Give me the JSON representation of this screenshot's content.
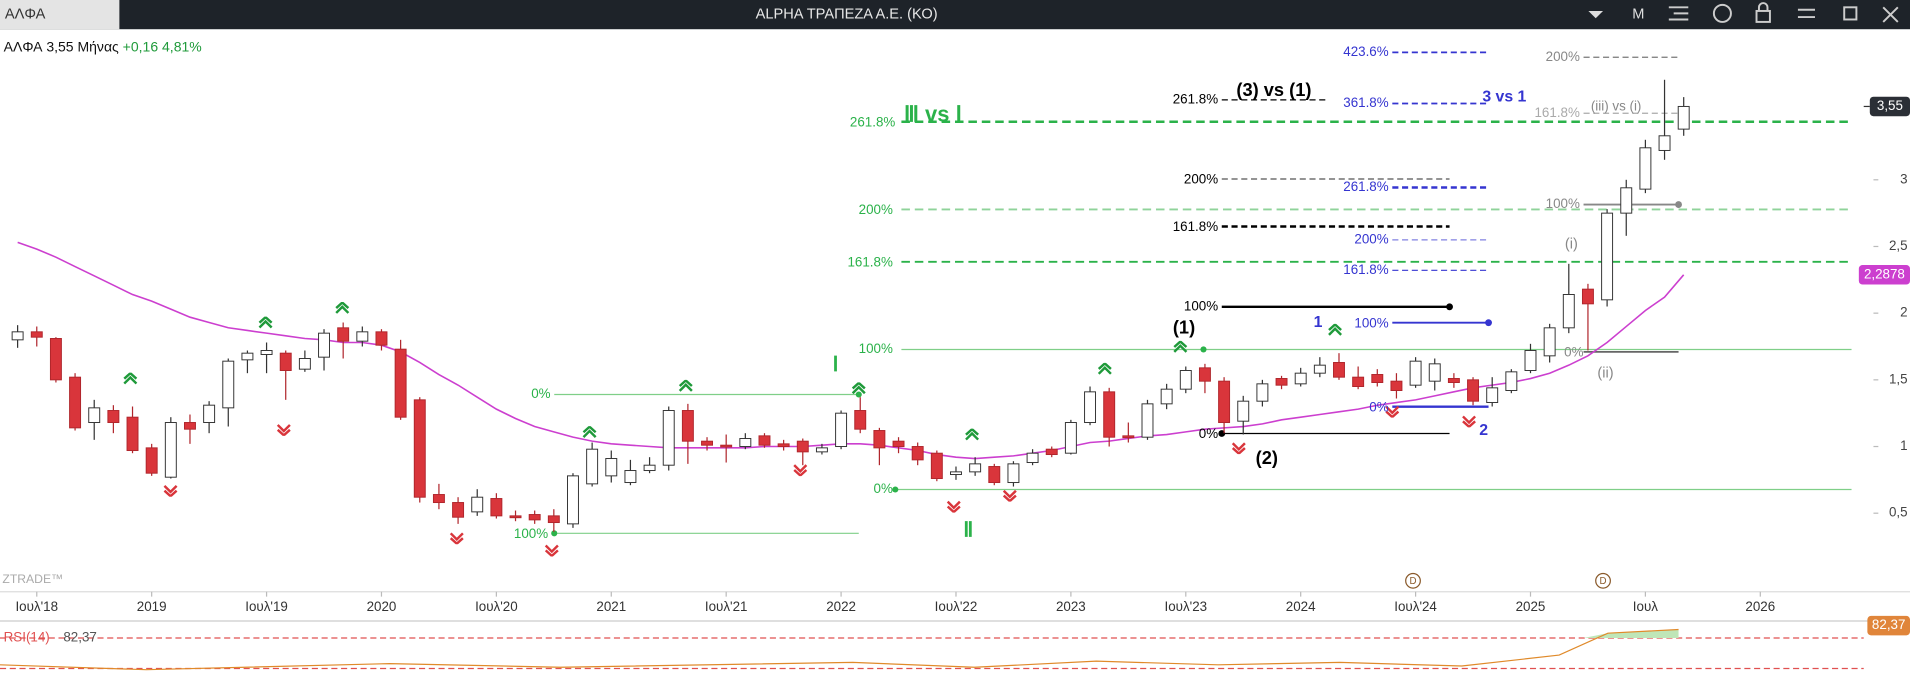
{
  "header": {
    "symbol": "ΑΛΦΑ",
    "title": "ALPHA ΤΡΑΠΕΖΑ Α.Ε. (ΚΟ)",
    "menu": "M"
  },
  "quote": {
    "symbol": "ΑΛΦΑ",
    "price": "3,55",
    "period": "Μήνας",
    "change": "+0,16",
    "change_pct": "4,81%"
  },
  "watermark": "ZTRADE™",
  "events": [
    "D",
    "D"
  ],
  "rsi": {
    "title": "RSI(14)",
    "value": 82.37,
    "value_label": "82,37"
  },
  "annotations": [
    "Ⅲ vs Ⅰ",
    "261.8%",
    "200%",
    "161.8%",
    "100%",
    "0%",
    "0%",
    "100%",
    "Ⅰ",
    "Ⅱ",
    "(3) vs (1)",
    "261.8%",
    "200%",
    "161.8%",
    "100%",
    "0%",
    "(1)",
    "(2)",
    "423.6%",
    "361.8%",
    "3 vs 1",
    "261.8%",
    "200%",
    "161.8%",
    "100%",
    "0%",
    "1",
    "2",
    "200%",
    "(iii) vs (i)",
    "161.8%",
    "100%",
    "0%",
    "(i)",
    "(ii)"
  ],
  "chart_data": {
    "type": "candlestick",
    "x": [
      "2018-06",
      "2018-07",
      "2018-08",
      "2018-09",
      "2018-10",
      "2018-11",
      "2018-12",
      "2019-01",
      "2019-02",
      "2019-03",
      "2019-04",
      "2019-05",
      "2019-06",
      "2019-07",
      "2019-08",
      "2019-09",
      "2019-10",
      "2019-11",
      "2019-12",
      "2020-01",
      "2020-02",
      "2020-03",
      "2020-04",
      "2020-05",
      "2020-06",
      "2020-07",
      "2020-08",
      "2020-09",
      "2020-10",
      "2020-11",
      "2020-12",
      "2021-01",
      "2021-02",
      "2021-03",
      "2021-04",
      "2021-05",
      "2021-06",
      "2021-07",
      "2021-08",
      "2021-09",
      "2021-10",
      "2021-11",
      "2021-12",
      "2022-01",
      "2022-02",
      "2022-03",
      "2022-04",
      "2022-05",
      "2022-06",
      "2022-07",
      "2022-08",
      "2022-09",
      "2022-10",
      "2022-11",
      "2022-12",
      "2023-01",
      "2023-02",
      "2023-03",
      "2023-04",
      "2023-05",
      "2023-06",
      "2023-07",
      "2023-08",
      "2023-09",
      "2023-10",
      "2023-11",
      "2023-12",
      "2024-01",
      "2024-02",
      "2024-03",
      "2024-04",
      "2024-05",
      "2024-06",
      "2024-07",
      "2024-08",
      "2024-09",
      "2024-10",
      "2024-11",
      "2024-12",
      "2025-01",
      "2025-02",
      "2025-03",
      "2025-04",
      "2025-05",
      "2025-06",
      "2025-07",
      "2025-08",
      "2025-09"
    ],
    "open": [
      1.8,
      1.86,
      1.81,
      1.52,
      1.18,
      1.27,
      1.22,
      0.99,
      0.77,
      1.18,
      1.18,
      1.29,
      1.65,
      1.69,
      1.7,
      1.58,
      1.67,
      1.89,
      1.79,
      1.86,
      1.73,
      1.35,
      0.64,
      0.58,
      0.51,
      0.61,
      0.48,
      0.49,
      0.48,
      0.42,
      0.72,
      0.78,
      0.73,
      0.82,
      0.86,
      1.27,
      1.04,
      1.01,
      1.0,
      1.08,
      1.02,
      1.04,
      0.96,
      1.0,
      1.27,
      1.12,
      1.04,
      1.0,
      0.95,
      0.79,
      0.81,
      0.85,
      0.73,
      0.88,
      0.98,
      0.95,
      1.18,
      1.41,
      1.08,
      1.07,
      1.32,
      1.43,
      1.59,
      1.49,
      1.19,
      1.34,
      1.51,
      1.47,
      1.55,
      1.63,
      1.52,
      1.54,
      1.49,
      1.46,
      1.49,
      1.51,
      1.5,
      1.33,
      1.42,
      1.57,
      1.68,
      1.89,
      2.18,
      2.1,
      2.75,
      2.93,
      3.22,
      3.38
    ],
    "high": [
      1.91,
      1.9,
      1.82,
      1.55,
      1.35,
      1.31,
      1.3,
      1.02,
      1.22,
      1.24,
      1.34,
      1.66,
      1.72,
      1.78,
      1.72,
      1.72,
      1.88,
      1.93,
      1.9,
      1.88,
      1.8,
      1.37,
      0.72,
      0.62,
      0.68,
      0.65,
      0.52,
      0.52,
      0.53,
      0.8,
      1.03,
      0.97,
      0.9,
      0.92,
      1.3,
      1.32,
      1.07,
      1.09,
      1.1,
      1.1,
      1.05,
      1.06,
      1.02,
      1.27,
      1.37,
      1.14,
      1.07,
      1.03,
      0.97,
      0.85,
      0.92,
      0.87,
      0.89,
      0.98,
      1.0,
      1.2,
      1.45,
      1.44,
      1.18,
      1.35,
      1.47,
      1.6,
      1.62,
      1.52,
      1.38,
      1.5,
      1.53,
      1.59,
      1.67,
      1.7,
      1.6,
      1.58,
      1.55,
      1.67,
      1.66,
      1.55,
      1.52,
      1.52,
      1.58,
      1.77,
      1.92,
      2.37,
      2.22,
      2.78,
      3.0,
      3.3,
      3.75,
      3.62
    ],
    "low": [
      1.74,
      1.75,
      1.48,
      1.12,
      1.05,
      1.1,
      0.95,
      0.78,
      0.76,
      1.02,
      1.1,
      1.15,
      1.55,
      1.55,
      1.35,
      1.56,
      1.57,
      1.66,
      1.75,
      1.72,
      1.2,
      0.58,
      0.53,
      0.42,
      0.48,
      0.46,
      0.44,
      0.42,
      0.36,
      0.39,
      0.7,
      0.73,
      0.71,
      0.8,
      0.82,
      0.87,
      0.97,
      0.88,
      0.98,
      0.99,
      0.97,
      0.86,
      0.94,
      0.98,
      1.1,
      0.86,
      0.95,
      0.86,
      0.74,
      0.75,
      0.78,
      0.71,
      0.7,
      0.86,
      0.92,
      0.94,
      1.16,
      1.0,
      1.03,
      1.05,
      1.28,
      1.4,
      1.4,
      1.1,
      1.09,
      1.3,
      1.43,
      1.45,
      1.52,
      1.5,
      1.43,
      1.45,
      1.36,
      1.44,
      1.42,
      1.44,
      1.31,
      1.3,
      1.4,
      1.55,
      1.63,
      1.85,
      1.72,
      2.05,
      2.58,
      2.9,
      3.15,
      3.33
    ],
    "close": [
      1.86,
      1.82,
      1.5,
      1.14,
      1.29,
      1.18,
      0.97,
      0.8,
      1.18,
      1.13,
      1.31,
      1.64,
      1.7,
      1.72,
      1.57,
      1.66,
      1.85,
      1.79,
      1.86,
      1.76,
      1.22,
      0.62,
      0.58,
      0.47,
      0.62,
      0.48,
      0.47,
      0.45,
      0.43,
      0.78,
      0.98,
      0.91,
      0.82,
      0.86,
      1.27,
      1.04,
      1.01,
      1.0,
      1.06,
      1.01,
      1.0,
      0.96,
      0.99,
      1.25,
      1.13,
      0.99,
      1.0,
      0.9,
      0.76,
      0.81,
      0.87,
      0.73,
      0.87,
      0.95,
      0.94,
      1.18,
      1.41,
      1.07,
      1.07,
      1.32,
      1.43,
      1.57,
      1.49,
      1.18,
      1.34,
      1.47,
      1.46,
      1.55,
      1.61,
      1.52,
      1.45,
      1.48,
      1.42,
      1.64,
      1.62,
      1.48,
      1.34,
      1.44,
      1.56,
      1.72,
      1.89,
      2.14,
      2.07,
      2.75,
      2.94,
      3.24,
      3.33,
      3.55
    ],
    "last_close_label": "3,55",
    "up_color": "#ffffff",
    "down_color": "#d9353b",
    "ma": {
      "color": "#cc3fcf",
      "last_label": "2,2878",
      "values": [
        2.53,
        2.48,
        2.42,
        2.35,
        2.28,
        2.21,
        2.14,
        2.09,
        2.03,
        1.97,
        1.93,
        1.89,
        1.87,
        1.85,
        1.83,
        1.81,
        1.8,
        1.78,
        1.78,
        1.76,
        1.71,
        1.63,
        1.54,
        1.46,
        1.37,
        1.28,
        1.21,
        1.15,
        1.11,
        1.07,
        1.04,
        1.02,
        1.01,
        1.0,
        0.99,
        0.99,
        0.99,
        0.99,
        0.99,
        1.0,
        1.0,
        1.0,
        1.01,
        1.02,
        1.02,
        1.01,
        0.99,
        0.97,
        0.94,
        0.92,
        0.91,
        0.92,
        0.93,
        0.95,
        0.97,
        1.0,
        1.03,
        1.04,
        1.06,
        1.08,
        1.09,
        1.11,
        1.13,
        1.14,
        1.15,
        1.17,
        1.2,
        1.22,
        1.24,
        1.26,
        1.28,
        1.31,
        1.33,
        1.35,
        1.38,
        1.41,
        1.44,
        1.46,
        1.48,
        1.51,
        1.55,
        1.61,
        1.68,
        1.78,
        1.9,
        2.02,
        2.12,
        2.2878
      ]
    },
    "xlim": [
      2018.34,
      2026.45
    ],
    "xticks": [
      {
        "value": 2018.5,
        "label": "Ιουλ'18"
      },
      2019,
      {
        "value": 2019.5,
        "label": "Ιουλ'19"
      },
      2020,
      {
        "value": 2020.5,
        "label": "Ιουλ'20"
      },
      2021,
      {
        "value": 2021.5,
        "label": "Ιουλ'21"
      },
      2022,
      {
        "value": 2022.5,
        "label": "Ιουλ'22"
      },
      2023,
      {
        "value": 2023.5,
        "label": "Ιουλ'23"
      },
      2024,
      {
        "value": 2024.5,
        "label": "Ιουλ'24"
      },
      2025,
      {
        "value": 2025.5,
        "label": "Ιουλ"
      },
      2026
    ],
    "ylim": [
      -0.08,
      4.12
    ],
    "yticks": [
      {
        "value": 0.5,
        "label": "0,5"
      },
      1,
      {
        "value": 1.5,
        "label": "1,5"
      },
      2,
      {
        "value": 2.5,
        "label": "2,5"
      },
      3
    ],
    "grid": false
  }
}
